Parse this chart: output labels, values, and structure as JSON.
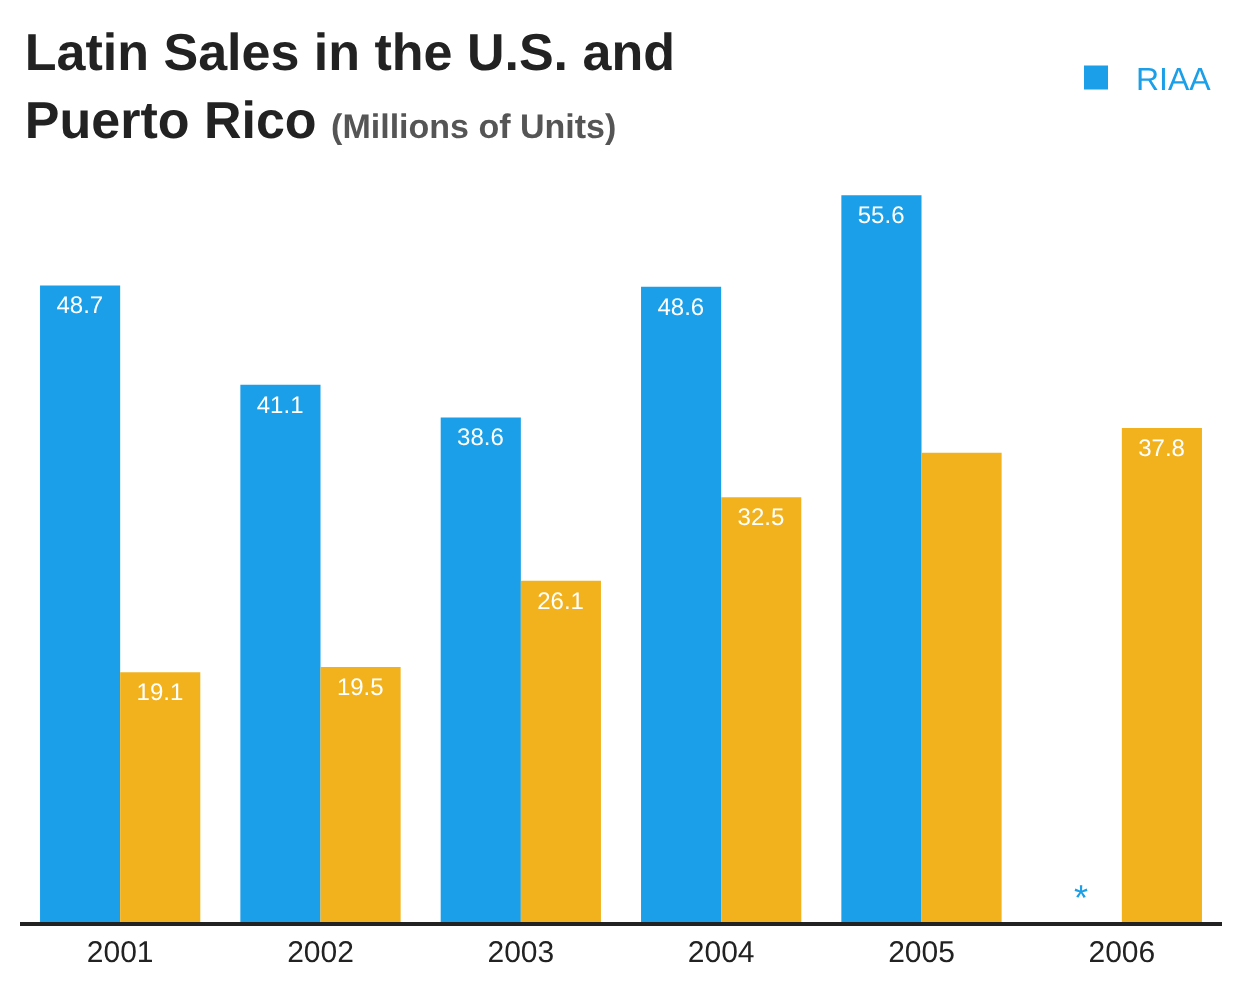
{
  "chart_data": {
    "type": "bar",
    "title": "Latin Sales in the U.S. and\nPuerto Rico",
    "subtitle": "(Millions of Units)",
    "categories": [
      "2001",
      "2002",
      "2003",
      "2004",
      "2005",
      "2006"
    ],
    "series": [
      {
        "name": "RIAA",
        "color": "#1a9fe8",
        "values": [
          48.7,
          41.1,
          38.6,
          48.6,
          55.6,
          null
        ],
        "value_labels": [
          "48.7",
          "41.1",
          "38.6",
          "48.6",
          "55.6",
          null
        ]
      },
      {
        "color": "#f2b21e",
        "values": [
          19.1,
          19.5,
          26.1,
          32.5,
          35.9,
          37.8
        ],
        "value_labels": [
          "19.1",
          "19.5",
          "26.1",
          "32.5",
          null,
          "37.8"
        ]
      }
    ],
    "annotations": [
      {
        "text": "*",
        "x": "2006",
        "y": 0
      }
    ],
    "ylim": [
      0,
      56
    ],
    "tick_labels": "x",
    "legend": "top right"
  }
}
